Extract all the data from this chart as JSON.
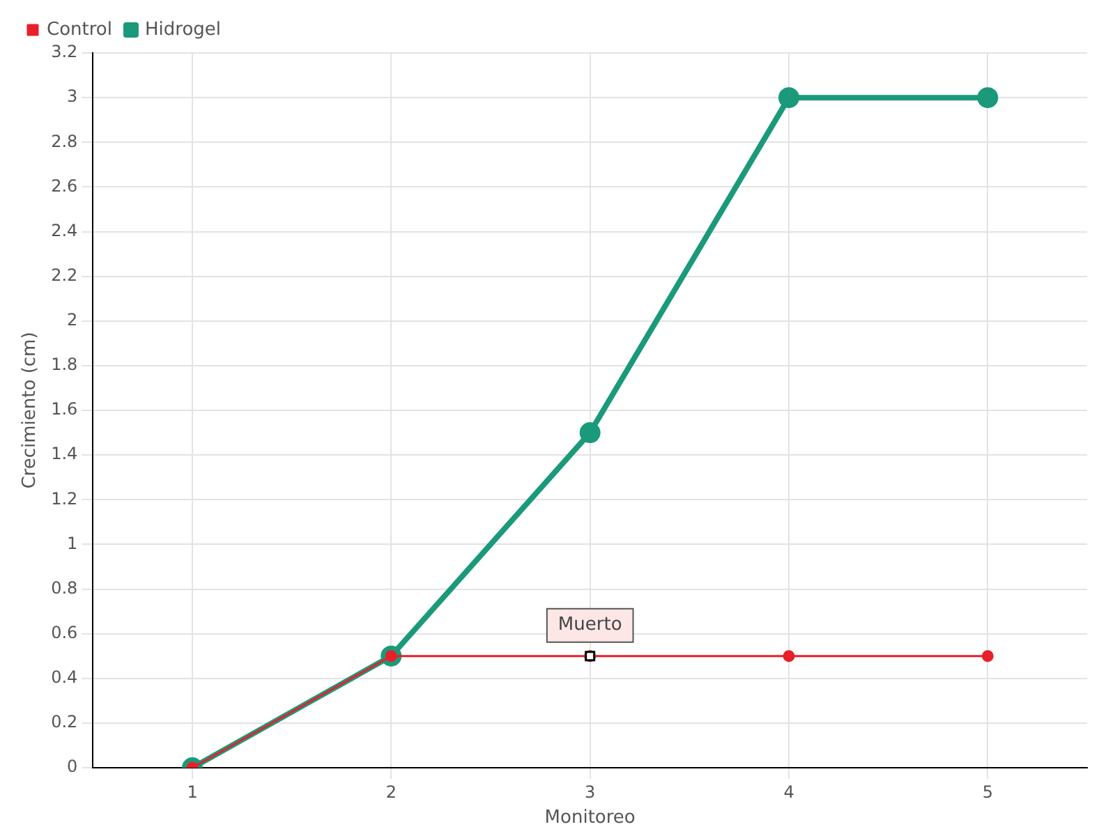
{
  "chart_data": {
    "type": "line",
    "xlabel": "Monitoreo",
    "ylabel": "Crecimiento (cm)",
    "categories": [
      "1",
      "2",
      "3",
      "4",
      "5"
    ],
    "series": [
      {
        "name": "Hidrogel",
        "color": "#1a9a7a",
        "values": [
          0,
          0.5,
          1.5,
          3,
          3
        ]
      },
      {
        "name": "Control",
        "color": "#e8202a",
        "values": [
          0,
          0.5,
          0.5,
          0.5,
          0.5
        ]
      }
    ],
    "ylim": [
      0,
      3.2
    ],
    "yticks": [
      0,
      0.2,
      0.4,
      0.6,
      0.8,
      1,
      1.2,
      1.4,
      1.6,
      1.8,
      2,
      2.2,
      2.4,
      2.6,
      2.8,
      3,
      3.2
    ],
    "grid": true,
    "legend": "top left",
    "marker": "circle",
    "line_style": "solid",
    "annotations": [
      {
        "text": "Muerto",
        "x": "3",
        "y": 0.5
      }
    ]
  }
}
